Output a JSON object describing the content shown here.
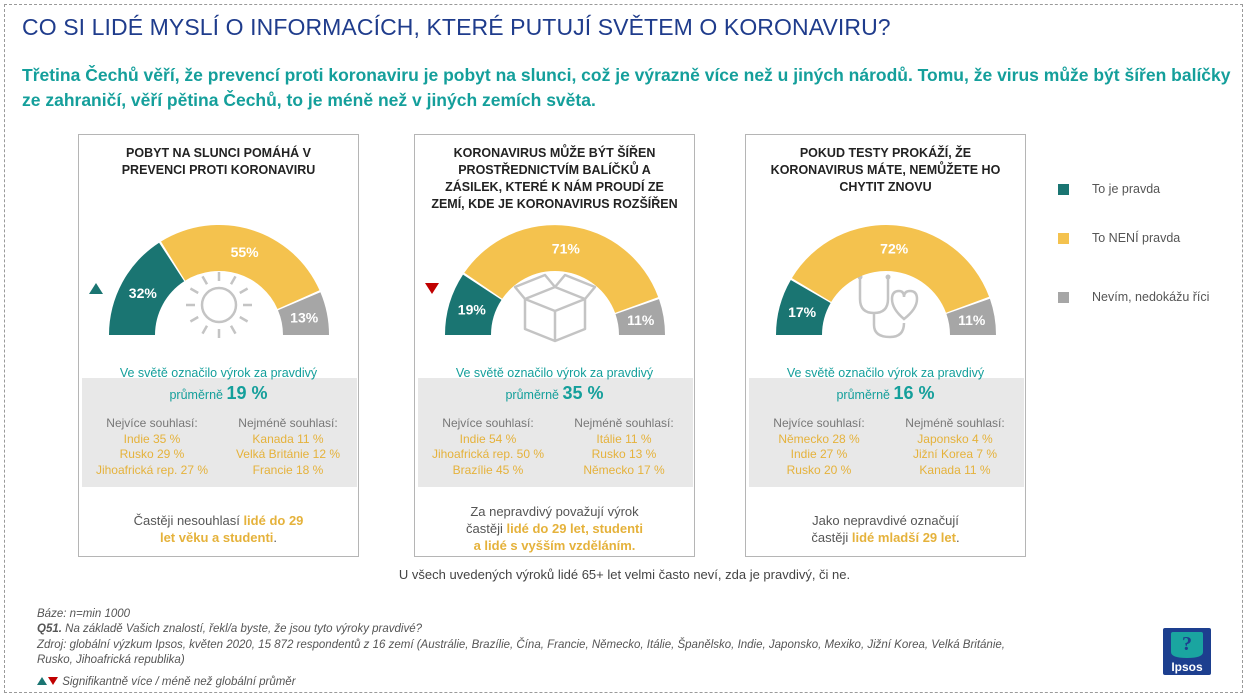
{
  "header": {
    "title": "CO SI LIDÉ MYSLÍ O INFORMACÍCH, KTERÉ PUTUJÍ SVĚTEM O KORONAVIRU?",
    "subtitle": "Třetina Čechů věří, že prevencí proti koronaviru je pobyt na slunci, což je výrazně více než u jiných národů. Tomu, že virus může být šířen balíčky ze zahraničí, věří pětina Čechů, to je méně než v jiných zemích světa."
  },
  "colors": {
    "true": "#1a7572",
    "false": "#f4c24e",
    "dontknow": "#a6a6a6",
    "accent": "#149f9b",
    "highlight": "#e5b23b",
    "up": "#1a7572",
    "down": "#c00000"
  },
  "legend": {
    "items": [
      {
        "label": "To je pravda",
        "color": "#1a7572"
      },
      {
        "label": "To NENÍ pravda",
        "color": "#f4c24e"
      },
      {
        "label": "Nevím, nedokážu říci",
        "color": "#a6a6a6"
      }
    ]
  },
  "chart_data": [
    {
      "type": "pie",
      "title": "POBYT NA SLUNCI POMÁHÁ V PREVENCI PROTI KORONAVIRU",
      "title_lines": [
        "POBYT NA SLUNCI POMÁHÁ V",
        "PREVENCI PROTI KORONAVIRU"
      ],
      "categories": [
        "To je pravda",
        "To NENÍ pravda",
        "Nevím, nedokážu říci"
      ],
      "values": [
        32,
        55,
        13
      ],
      "labels": [
        "32%",
        "55%",
        "13%"
      ],
      "significance": "up",
      "icon": "sun-icon",
      "world_line1": "Ve světě označilo výrok za pravdivý",
      "world_prefix": "průměrně",
      "world_value": "19 %",
      "most_header": "Nejvíce souhlasí:",
      "most": [
        "Indie 35 %",
        "Rusko 29 %",
        "Jihoafrická rep. 27 %"
      ],
      "least_header": "Nejméně souhlasí:",
      "least": [
        "Kanada 11 %",
        "Velká Británie 12 %",
        "Francie 18 %"
      ],
      "note_parts": [
        {
          "text": "Častěji nesouhlasí ",
          "hl": false
        },
        {
          "text": "lidé do 29",
          "hl": true
        },
        {
          "text": "\n",
          "hl": false
        },
        {
          "text": "let věku a studenti",
          "hl": true
        },
        {
          "text": ".",
          "hl": false
        }
      ]
    },
    {
      "type": "pie",
      "title": "KORONAVIRUS MŮŽE BÝT ŠÍŘEN PROSTŘEDNICTVÍM BALÍČKŮ A ZÁSILEK, KTERÉ K NÁM PROUDÍ ZE ZEMÍ, KDE JE KORONAVIRUS ROZŠÍŘEN",
      "title_lines": [
        "KORONAVIRUS MŮŽE BÝT ŠÍŘEN",
        "PROSTŘEDNICTVÍM BALÍČKŮ A",
        "ZÁSILEK, KTERÉ K NÁM PROUDÍ ZE",
        "ZEMÍ, KDE JE KORONAVIRUS ROZŠÍŘEN"
      ],
      "categories": [
        "To je pravda",
        "To NENÍ pravda",
        "Nevím, nedokážu říci"
      ],
      "values": [
        19,
        71,
        11
      ],
      "labels": [
        "19%",
        "71%",
        "11%"
      ],
      "significance": "down",
      "icon": "box-icon",
      "world_line1": "Ve světě označilo výrok za pravdivý",
      "world_prefix": "průměrně",
      "world_value": "35 %",
      "most_header": "Nejvíce souhlasí:",
      "most": [
        "Indie 54 %",
        "Jihoafrická rep. 50 %",
        "Brazílie 45 %"
      ],
      "least_header": "Nejméně souhlasí:",
      "least": [
        "Itálie 11 %",
        "Rusko 13 %",
        "Německo 17 %"
      ],
      "note_parts": [
        {
          "text": "Za nepravdivý považují výrok",
          "hl": false
        },
        {
          "text": "\n",
          "hl": false
        },
        {
          "text": "častěji  ",
          "hl": false
        },
        {
          "text": "lidé do 29 let, studenti",
          "hl": true
        },
        {
          "text": "\n",
          "hl": false
        },
        {
          "text": "a lidé s vyšším vzděláním.",
          "hl": true
        }
      ]
    },
    {
      "type": "pie",
      "title": "POKUD TESTY PROKÁŽÍ, ŽE KORONAVIRUS MÁTE, NEMŮŽETE HO CHYTIT ZNOVU",
      "title_lines": [
        "POKUD TESTY PROKÁŽÍ, ŽE",
        "KORONAVIRUS MÁTE, NEMŮŽETE HO",
        "CHYTIT ZNOVU"
      ],
      "categories": [
        "To je pravda",
        "To NENÍ pravda",
        "Nevím, nedokážu říci"
      ],
      "values": [
        17,
        72,
        11
      ],
      "labels": [
        "17%",
        "72%",
        "11%"
      ],
      "significance": "none",
      "icon": "stethoscope-icon",
      "world_line1": "Ve světě označilo výrok za pravdivý",
      "world_prefix": "průměrně",
      "world_value": "16 %",
      "most_header": "Nejvíce souhlasí:",
      "most": [
        "Německo 28 %",
        "Indie 27 %",
        "Rusko 20 %"
      ],
      "least_header": "Nejméně souhlasí:",
      "least": [
        "Japonsko 4 %",
        "Jižní Korea 7 %",
        "Kanada 11 %"
      ],
      "note_parts": [
        {
          "text": "Jako nepravdivé označují",
          "hl": false
        },
        {
          "text": "\n",
          "hl": false
        },
        {
          "text": "častěji ",
          "hl": false
        },
        {
          "text": "lidé mladší 29 let",
          "hl": true
        },
        {
          "text": ".",
          "hl": false
        }
      ]
    }
  ],
  "bottom_note": "U všech uvedených výroků lidé 65+ let velmi často neví, zda je pravdivý, či ne.",
  "footer": {
    "base": "Báze: n=min 1000",
    "question_code": "Q51.",
    "question": " Na základě Vašich znalostí, řekl/a byste, že jsou tyto výroky pravdivé?",
    "source": "Zdroj: globální výzkum Ipsos, květen 2020, 15 872 respondentů z 16 zemí (Austrálie, Brazílie, Čína, Francie, Německo, Itálie, Španělsko, Indie, Japonsko, Mexiko, Jižní Korea, Velká Británie,",
    "source2": "Rusko, Jihoafrická republika)",
    "significance": "Signifikantně více / méně než globální průměr"
  },
  "logo": {
    "text": "Ipsos"
  }
}
